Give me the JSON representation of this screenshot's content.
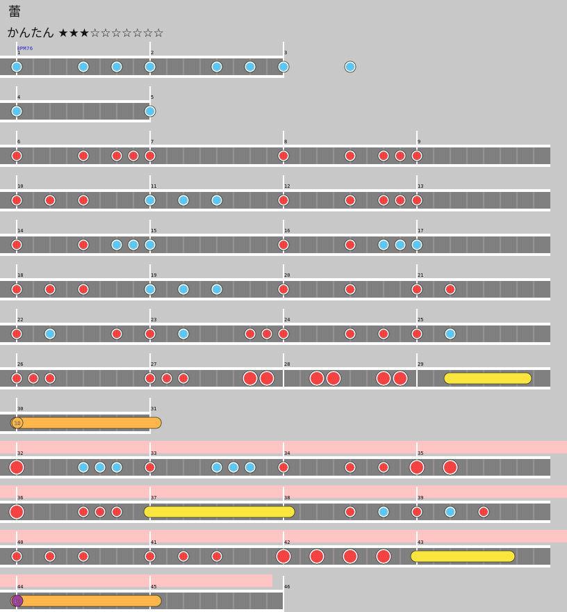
{
  "song": {
    "title": "蕾",
    "difficulty_label": "かんたん",
    "stars_filled": "★★★",
    "stars_empty": "☆☆☆☆☆☆☆",
    "level": 3,
    "level_max": 10
  },
  "bpm_label": "BPM76",
  "colors": {
    "background": "#c8c8c8",
    "lane": "#808080",
    "gogo_band": "#ffc4c4",
    "don": "#f34342",
    "ka": "#5ec6f2",
    "drumroll": "#f9e740",
    "balloon": "#ffb74a",
    "balloon_alt": "#a23fa0"
  },
  "rows": [
    {
      "measures": [
        "1",
        "2",
        "3"
      ],
      "beats": 16,
      "gogo": false,
      "notes": [
        [
          0,
          "ka"
        ],
        [
          4,
          "ka"
        ],
        [
          6,
          "ka"
        ],
        [
          8,
          "ka"
        ],
        [
          12,
          "ka"
        ],
        [
          14,
          "ka"
        ],
        [
          16,
          "ka"
        ],
        [
          20,
          "ka"
        ]
      ]
    },
    {
      "measures": [
        "4",
        "5"
      ],
      "beats": 8,
      "gogo": false,
      "notes": [
        [
          0,
          "ka"
        ],
        [
          8,
          "ka"
        ]
      ]
    },
    {
      "measures": [
        "6",
        "7",
        "8",
        "9"
      ],
      "beats": 32,
      "gogo": false,
      "notes": [
        [
          0,
          "don"
        ],
        [
          4,
          "don"
        ],
        [
          6,
          "don"
        ],
        [
          7,
          "don"
        ],
        [
          8,
          "don"
        ],
        [
          16,
          "don"
        ],
        [
          20,
          "don"
        ],
        [
          22,
          "don"
        ],
        [
          23,
          "don"
        ],
        [
          24,
          "don"
        ]
      ]
    },
    {
      "measures": [
        "10",
        "11",
        "12",
        "13"
      ],
      "beats": 32,
      "gogo": false,
      "notes": [
        [
          0,
          "don"
        ],
        [
          2,
          "don"
        ],
        [
          4,
          "don"
        ],
        [
          8,
          "ka"
        ],
        [
          10,
          "ka"
        ],
        [
          12,
          "ka"
        ],
        [
          16,
          "don"
        ],
        [
          20,
          "don"
        ],
        [
          22,
          "don"
        ],
        [
          23,
          "don"
        ],
        [
          24,
          "don"
        ]
      ]
    },
    {
      "measures": [
        "14",
        "15",
        "16",
        "17"
      ],
      "beats": 32,
      "gogo": false,
      "notes": [
        [
          0,
          "don"
        ],
        [
          4,
          "don"
        ],
        [
          6,
          "ka"
        ],
        [
          7,
          "ka"
        ],
        [
          8,
          "ka"
        ],
        [
          16,
          "don"
        ],
        [
          20,
          "don"
        ],
        [
          22,
          "ka"
        ],
        [
          23,
          "ka"
        ],
        [
          24,
          "ka"
        ]
      ]
    },
    {
      "measures": [
        "18",
        "19",
        "20",
        "21"
      ],
      "beats": 32,
      "gogo": false,
      "notes": [
        [
          0,
          "don"
        ],
        [
          2,
          "don"
        ],
        [
          4,
          "don"
        ],
        [
          8,
          "ka"
        ],
        [
          10,
          "ka"
        ],
        [
          12,
          "ka"
        ],
        [
          16,
          "don"
        ],
        [
          20,
          "don"
        ],
        [
          24,
          "don"
        ],
        [
          26,
          "don"
        ]
      ]
    },
    {
      "measures": [
        "22",
        "23",
        "24",
        "25"
      ],
      "beats": 32,
      "gogo": false,
      "notes": [
        [
          0,
          "don"
        ],
        [
          2,
          "ka"
        ],
        [
          6,
          "don"
        ],
        [
          8,
          "don"
        ],
        [
          10,
          "ka"
        ],
        [
          14,
          "don"
        ],
        [
          15,
          "don"
        ],
        [
          16,
          "don"
        ],
        [
          20,
          "don"
        ],
        [
          22,
          "don"
        ],
        [
          24,
          "don"
        ],
        [
          26,
          "ka"
        ]
      ]
    },
    {
      "measures": [
        "26",
        "27",
        "28",
        "29"
      ],
      "beats": 32,
      "gogo": false,
      "notes": [
        [
          0,
          "don"
        ],
        [
          1,
          "don"
        ],
        [
          2,
          "don"
        ],
        [
          8,
          "don"
        ],
        [
          9,
          "don"
        ],
        [
          10,
          "don"
        ],
        [
          14,
          "DON"
        ],
        [
          15,
          "DON"
        ],
        [
          18,
          "DON"
        ],
        [
          19,
          "DON"
        ],
        [
          22,
          "DON"
        ],
        [
          23,
          "DON"
        ]
      ],
      "rolls": [
        [
          26,
          30.5,
          "roll"
        ]
      ]
    },
    {
      "measures": [
        "30",
        "31"
      ],
      "beats": 8,
      "gogo": false,
      "notes": [],
      "rolls": [
        [
          0,
          8.3,
          "balloon",
          "10"
        ]
      ]
    },
    {
      "measures": [
        "32",
        "33",
        "34",
        "35"
      ],
      "beats": 32,
      "gogo": true,
      "notes": [
        [
          0,
          "DON"
        ],
        [
          4,
          "ka"
        ],
        [
          5,
          "ka"
        ],
        [
          6,
          "ka"
        ],
        [
          8,
          "don"
        ],
        [
          12,
          "ka"
        ],
        [
          13,
          "ka"
        ],
        [
          14,
          "ka"
        ],
        [
          16,
          "don"
        ],
        [
          20,
          "don"
        ],
        [
          22,
          "don"
        ],
        [
          24,
          "DON"
        ],
        [
          26,
          "DON"
        ]
      ]
    },
    {
      "measures": [
        "36",
        "37",
        "38",
        "39"
      ],
      "beats": 32,
      "gogo": true,
      "notes": [
        [
          0,
          "DON"
        ],
        [
          4,
          "don"
        ],
        [
          5,
          "don"
        ],
        [
          6,
          "don"
        ],
        [
          20,
          "don"
        ],
        [
          22,
          "ka"
        ],
        [
          24,
          "don"
        ],
        [
          26,
          "ka"
        ],
        [
          28,
          "don"
        ]
      ],
      "rolls": [
        [
          8,
          16.3,
          "roll"
        ]
      ]
    },
    {
      "measures": [
        "40",
        "41",
        "42",
        "43"
      ],
      "beats": 32,
      "gogo": true,
      "notes": [
        [
          0,
          "don"
        ],
        [
          2,
          "don"
        ],
        [
          4,
          "don"
        ],
        [
          8,
          "don"
        ],
        [
          10,
          "don"
        ],
        [
          12,
          "don"
        ],
        [
          16,
          "DON"
        ],
        [
          18,
          "DON"
        ],
        [
          20,
          "DON"
        ],
        [
          22,
          "DON"
        ]
      ],
      "rolls": [
        [
          24,
          29.5,
          "roll"
        ]
      ]
    },
    {
      "measures": [
        "44",
        "45",
        "46"
      ],
      "beats": 16,
      "gogo_beats": 16,
      "notes": [],
      "rolls": [
        [
          0,
          8.3,
          "balloon_alt",
          "10"
        ]
      ]
    }
  ]
}
